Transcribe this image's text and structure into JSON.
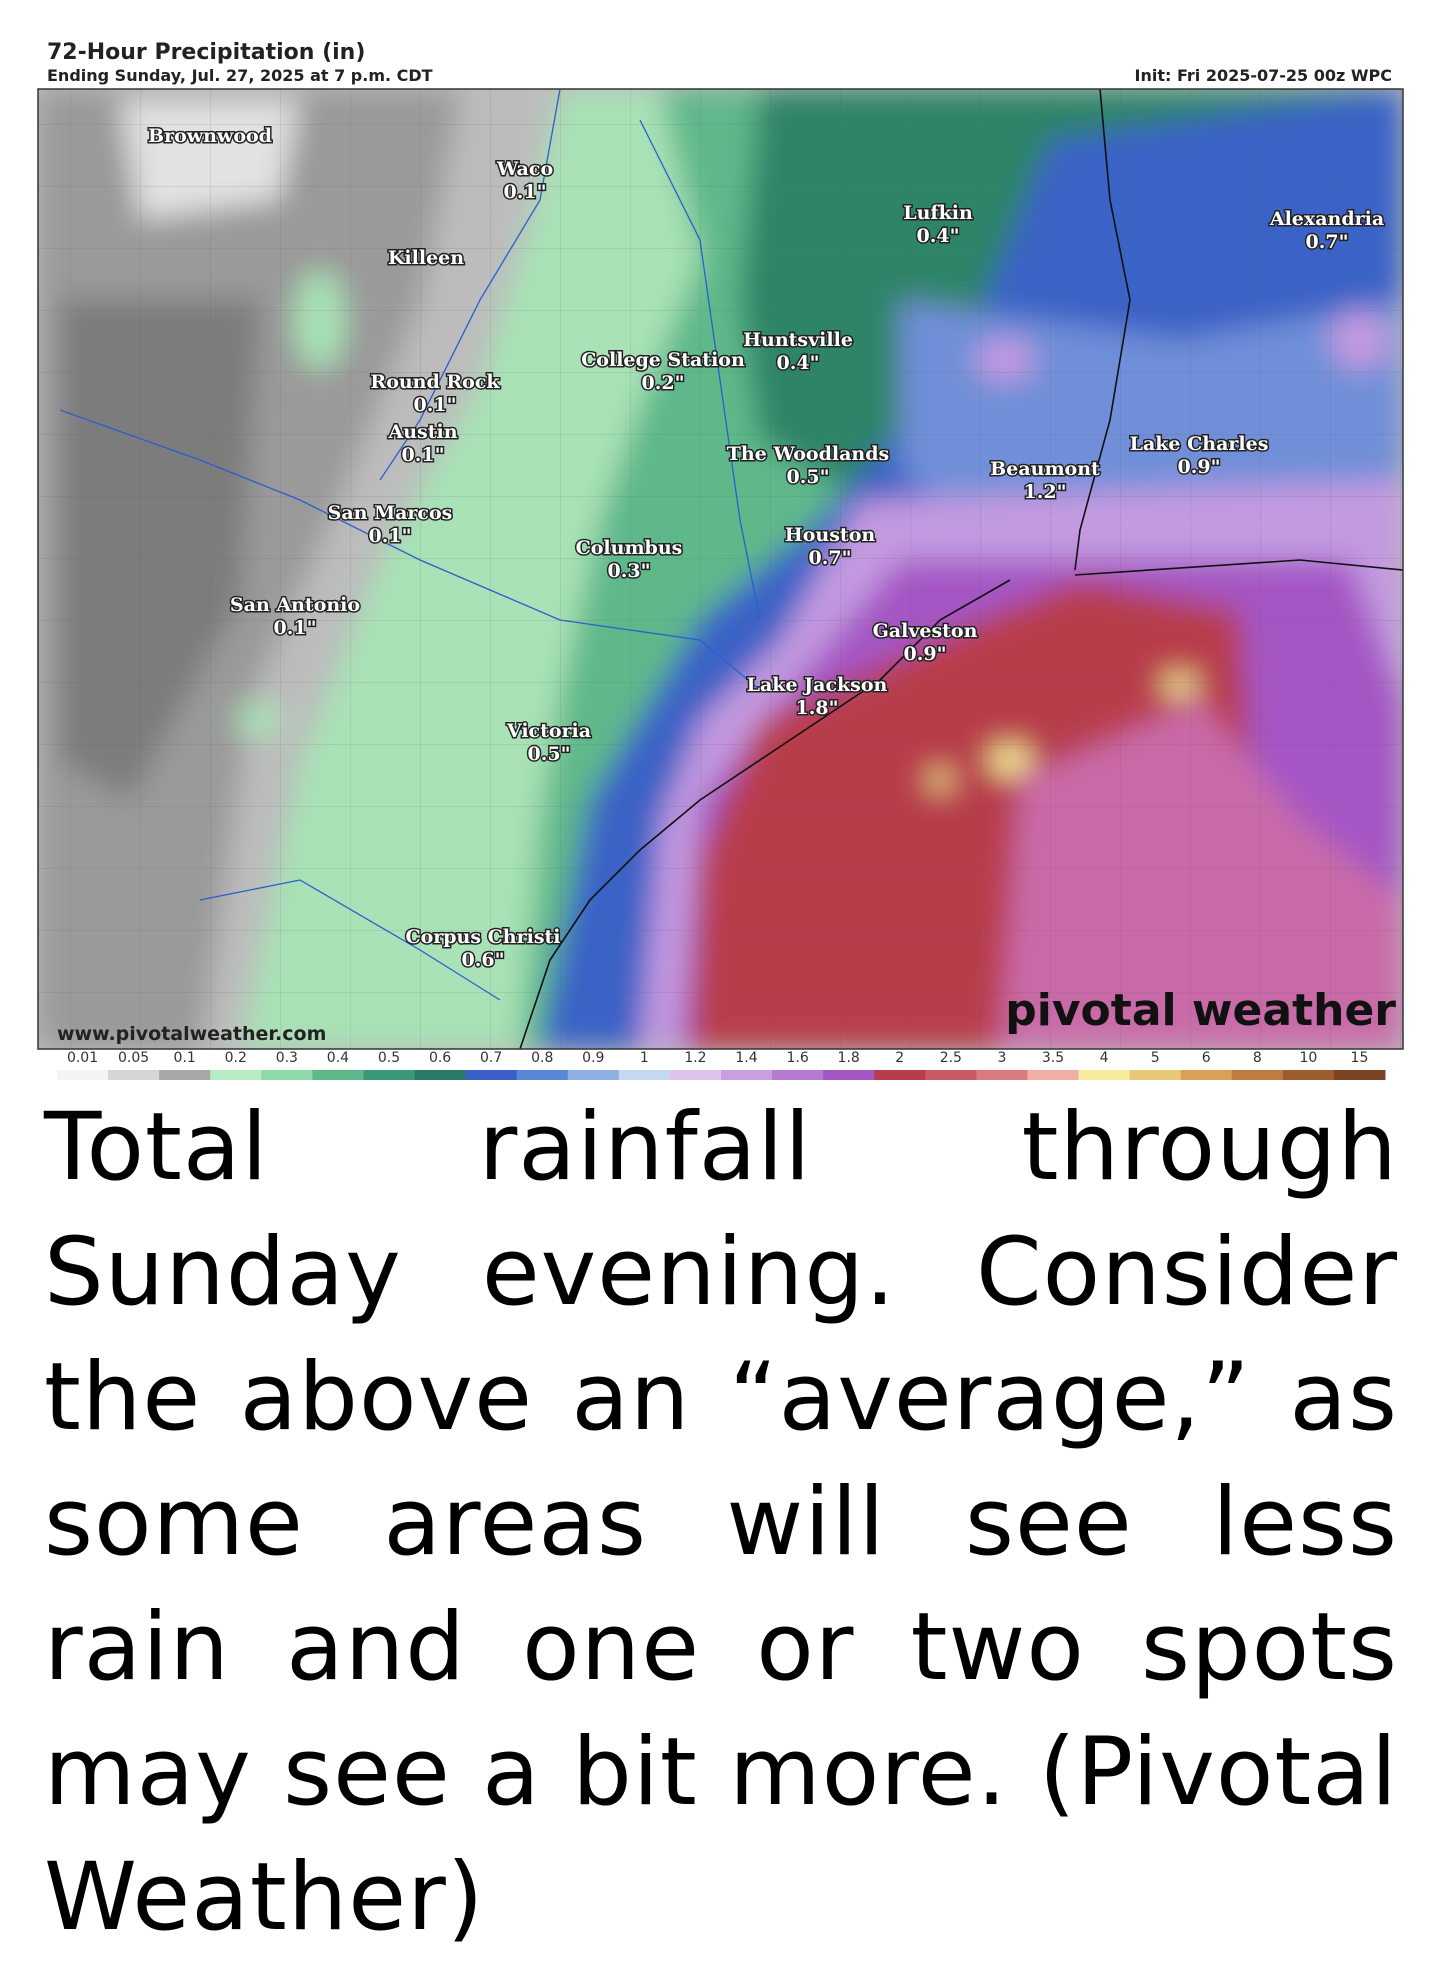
{
  "header": {
    "title": "72-Hour Precipitation (in)",
    "subtitle": "Ending Sunday, Jul. 27, 2025 at 7 p.m. CDT",
    "init": "Init: Fri 2025-07-25 00z WPC"
  },
  "map": {
    "cities": [
      {
        "name": "Brownwood"
      },
      {
        "name": "Waco",
        "amount": "0.1\""
      },
      {
        "name": "Killeen"
      },
      {
        "name": "Lufkin",
        "amount": "0.4\""
      },
      {
        "name": "Alexandria",
        "amount": "0.7\""
      },
      {
        "name": "College Station",
        "amount": "0.2\""
      },
      {
        "name": "Huntsville",
        "amount": "0.4\""
      },
      {
        "name": "Round Rock",
        "amount": "0.1\""
      },
      {
        "name": "Austin",
        "amount": "0.1\""
      },
      {
        "name": "The Woodlands",
        "amount": "0.5\""
      },
      {
        "name": "Lake Charles",
        "amount": "0.9\""
      },
      {
        "name": "Beaumont",
        "amount": "1.2\""
      },
      {
        "name": "San Marcos",
        "amount": "0.1\""
      },
      {
        "name": "Columbus",
        "amount": "0.3\""
      },
      {
        "name": "Houston",
        "amount": "0.7\""
      },
      {
        "name": "San Antonio",
        "amount": "0.1\""
      },
      {
        "name": "Galveston",
        "amount": "0.9\""
      },
      {
        "name": "Lake Jackson",
        "amount": "1.8\""
      },
      {
        "name": "Victoria",
        "amount": "0.5\""
      },
      {
        "name": "Corpus Christi",
        "amount": "0.6\""
      }
    ],
    "website": "www.pivotalweather.com",
    "brand": "pivotal weather"
  },
  "legend": {
    "ticks": [
      0.01,
      0.05,
      0.1,
      0.2,
      0.3,
      0.4,
      0.5,
      0.6,
      0.7,
      0.8,
      0.9,
      1,
      1.2,
      1.4,
      1.6,
      1.8,
      2,
      2.5,
      3,
      3.5,
      4,
      5,
      6,
      8,
      10,
      15
    ],
    "colors": [
      "#f4f4f4",
      "#d6d6d6",
      "#a8a8a8",
      "#b8ecc4",
      "#8fd8a8",
      "#5fb88a",
      "#3a9a78",
      "#2a7a66",
      "#3b5fc8",
      "#5a86d8",
      "#8fb0e4",
      "#c4d8f0",
      "#dcc4ec",
      "#c8a0e0",
      "#b67ad2",
      "#a456c4",
      "#b83c4c",
      "#c85a64",
      "#d87c80",
      "#f0b0a8",
      "#f6ec9c",
      "#e8c878",
      "#d8a058",
      "#c07c40",
      "#9c5c30",
      "#7a4424"
    ]
  },
  "caption": "Total rainfall through Sunday evening. Consider the above an “average,” as some areas will see less rain and one or two spots may see a bit more. (Pivotal Weather)"
}
